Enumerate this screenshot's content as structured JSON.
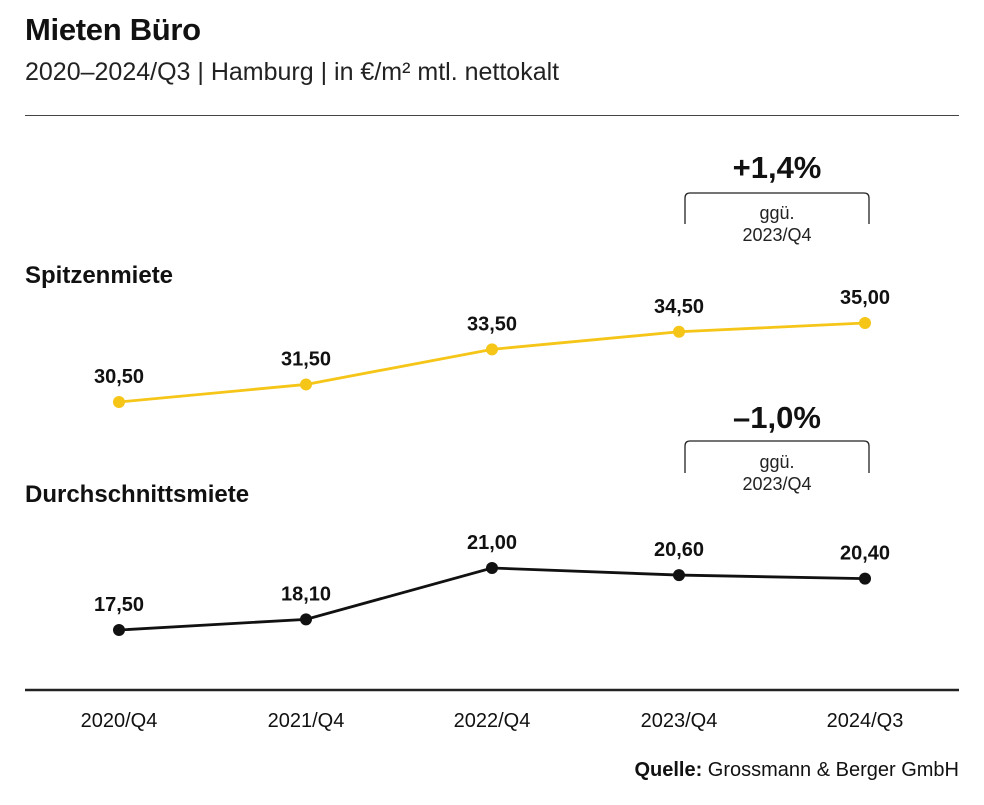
{
  "header": {
    "title": "Mieten Büro",
    "subtitle": "2020–2024/Q3 | Hamburg | in €/m² mtl. nettokalt"
  },
  "chart_data": {
    "type": "line",
    "title": "Mieten Büro",
    "subtitle": "2020–2024/Q3 | Hamburg | in €/m² mtl. nettokalt",
    "categories": [
      "2020/Q4",
      "2021/Q4",
      "2022/Q4",
      "2023/Q4",
      "2024/Q3"
    ],
    "series": [
      {
        "name": "Spitzenmiete",
        "color": "#F5C518",
        "values": [
          30.5,
          31.5,
          33.5,
          34.5,
          35.0
        ],
        "labels": [
          "30,50",
          "31,50",
          "33,50",
          "34,50",
          "35,00"
        ]
      },
      {
        "name": "Durchschnittsmiete",
        "color": "#111111",
        "values": [
          17.5,
          18.1,
          21.0,
          20.6,
          20.4
        ],
        "labels": [
          "17,50",
          "18,10",
          "21,00",
          "20,60",
          "20,40"
        ]
      }
    ],
    "annotations": [
      {
        "series": "Spitzenmiete",
        "change": "+1,4%",
        "reference_line1": "ggü.",
        "reference_line2": "2023/Q4"
      },
      {
        "series": "Durchschnittsmiete",
        "change": "–1,0%",
        "reference_line1": "ggü.",
        "reference_line2": "2023/Q4"
      }
    ],
    "xlabel": "",
    "ylabel": "",
    "grid": false,
    "legend": "inline-left"
  },
  "source": {
    "label": "Quelle:",
    "text": "Grossmann & Berger GmbH"
  }
}
